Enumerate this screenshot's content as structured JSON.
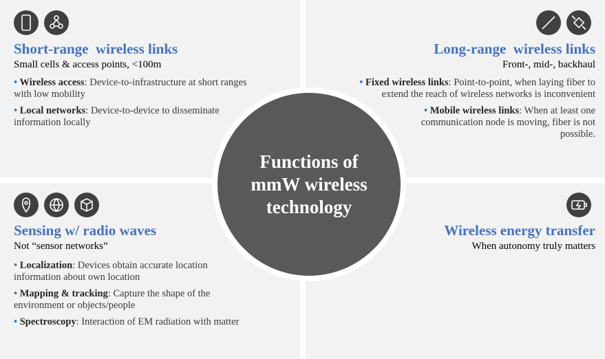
{
  "center": "Functions of mmW wireless technology",
  "quadrants": [
    {
      "title": "Short-range  wireless links",
      "subtitle": "Small cells & access points, <100m",
      "bullets": [
        {
          "term": "Wireless access",
          "text": ": Device-to-infrastructure at short ranges with low mobility"
        },
        {
          "term": "Local networks",
          "text": ": Device-to-device  to disseminate information locally"
        }
      ]
    },
    {
      "title": "Long-range  wireless links",
      "subtitle": "Front-, mid-, backhaul",
      "bullets": [
        {
          "term": "Fixed wireless links",
          "text": ": Point-to-point, when laying fiber to extend the reach of wireless networks is inconvenient"
        },
        {
          "term": "Mobile wireless links",
          "text": ": When at least one communication  node is moving,  fiber is not possible."
        }
      ]
    },
    {
      "title": "Sensing w/ radio waves",
      "subtitle": "Not “sensor networks”",
      "bullets": [
        {
          "term": "Localization",
          "text": ": Devices obtain accurate location information about own location"
        },
        {
          "term": "Mapping & tracking",
          "text": ": Capture the shape of the environment or objects/people"
        },
        {
          "term": "Spectroscopy",
          "text": ": Interaction of EM radiation with matter"
        }
      ]
    },
    {
      "title": "Wireless energy transfer",
      "subtitle": "When autonomy truly matters",
      "bullets": []
    }
  ]
}
